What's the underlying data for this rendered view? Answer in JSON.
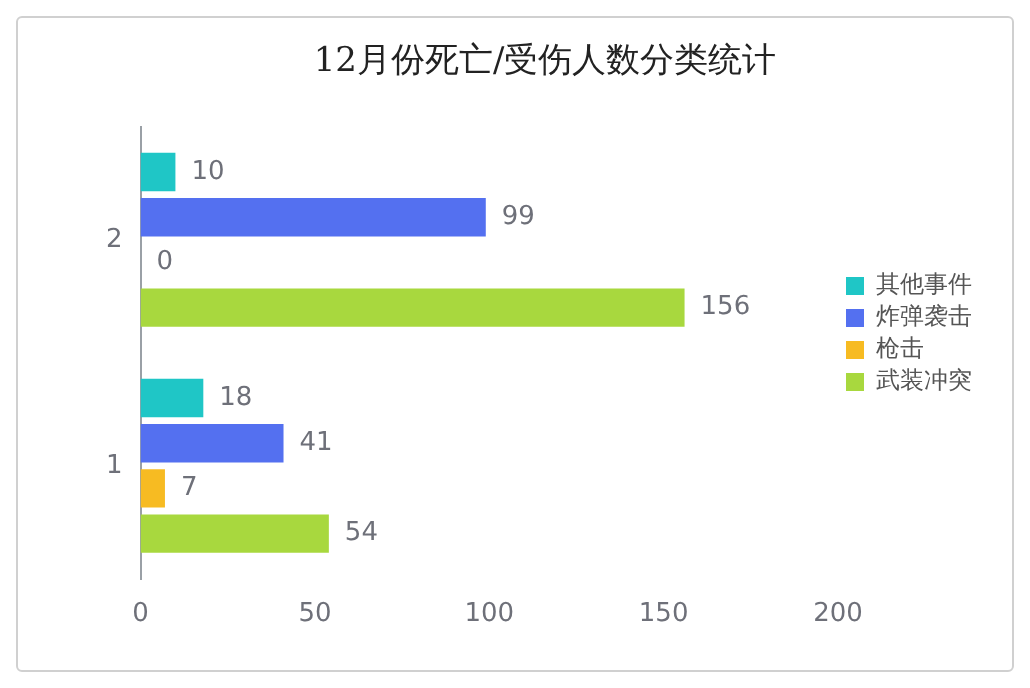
{
  "chart_data": {
    "type": "bar",
    "orientation": "horizontal",
    "title": "12月份死亡/受伤人数分类统计",
    "categories": [
      "2",
      "1"
    ],
    "series": [
      {
        "name": "其他事件",
        "color": "#1fc6c6",
        "values": [
          10,
          18
        ]
      },
      {
        "name": "炸弹袭击",
        "color": "#5470f0",
        "values": [
          99,
          41
        ]
      },
      {
        "name": "枪击",
        "color": "#f7bb22",
        "values": [
          0,
          7
        ]
      },
      {
        "name": "武装冲突",
        "color": "#a8d83e",
        "values": [
          156,
          54
        ]
      }
    ],
    "xlim": [
      0,
      200
    ],
    "xticks": [
      0,
      50,
      100,
      150,
      200
    ],
    "grid": false,
    "legend": "right",
    "data_labels": true
  }
}
